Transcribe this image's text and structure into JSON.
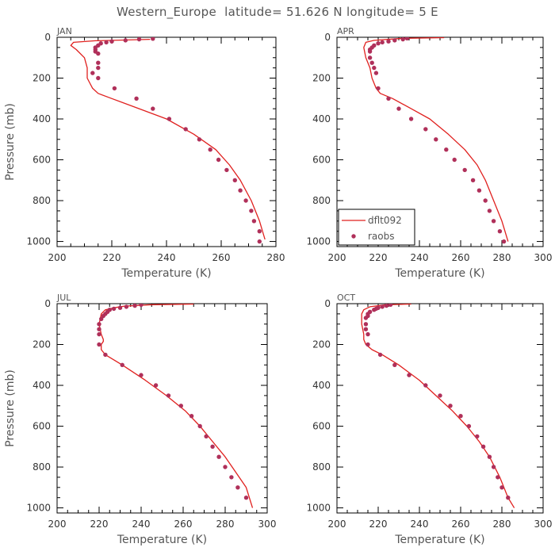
{
  "figure": {
    "title": "Western_Europe  latitude= 51.626 N longitude= 5 E"
  },
  "colors": {
    "model_line": "#e0201e",
    "obs_marker": "#b0305a",
    "axis": "#000000",
    "text": "#555555"
  },
  "chart_data": [
    {
      "type": "line",
      "panel": "JAN",
      "xlabel": "Temperature (K)",
      "ylabel": "Pressure (mb)",
      "xlim": [
        200,
        280
      ],
      "ylim": [
        1025,
        0
      ],
      "xticks": [
        200,
        220,
        240,
        260,
        280
      ],
      "yticks": [
        0,
        200,
        400,
        600,
        800,
        1000
      ],
      "grid": false,
      "legend": "none",
      "series": [
        {
          "name": "dflt092",
          "style": "line",
          "x": [
            234,
            214,
            206,
            205,
            207,
            210,
            211,
            211,
            212,
            213,
            215,
            220,
            230,
            240,
            250,
            258,
            263,
            267,
            271,
            274,
            276
          ],
          "y": [
            10,
            17,
            25,
            40,
            60,
            100,
            150,
            200,
            225,
            250,
            275,
            300,
            350,
            400,
            475,
            550,
            625,
            700,
            800,
            900,
            990
          ]
        },
        {
          "name": "raobs",
          "style": "scatter",
          "x": [
            235,
            230,
            225,
            220,
            218,
            216,
            215,
            214,
            214,
            214,
            215,
            215,
            215,
            213,
            215,
            221,
            229,
            235,
            241,
            247,
            252,
            256,
            259,
            262,
            265,
            267,
            269,
            271,
            272,
            274,
            274
          ],
          "y": [
            7,
            10,
            15,
            20,
            25,
            30,
            40,
            50,
            60,
            70,
            80,
            125,
            150,
            175,
            200,
            250,
            300,
            350,
            400,
            450,
            500,
            550,
            600,
            650,
            700,
            750,
            800,
            850,
            900,
            950,
            1000
          ]
        }
      ]
    },
    {
      "type": "line",
      "panel": "APR",
      "xlabel": "Temperature (K)",
      "ylabel": "",
      "xlim": [
        200,
        300
      ],
      "ylim": [
        1025,
        0
      ],
      "xticks": [
        200,
        220,
        240,
        260,
        280,
        300
      ],
      "yticks": [
        0,
        200,
        400,
        600,
        800,
        1000
      ],
      "grid": false,
      "legend": "lower-left",
      "series": [
        {
          "name": "dflt092",
          "style": "line",
          "x": [
            252,
            232,
            218,
            214,
            213,
            214,
            216,
            217,
            218,
            219,
            221,
            227,
            236,
            245,
            254,
            262,
            268,
            272,
            276,
            280,
            283
          ],
          "y": [
            2,
            5,
            15,
            25,
            50,
            100,
            150,
            200,
            225,
            250,
            275,
            300,
            350,
            400,
            475,
            550,
            625,
            700,
            800,
            900,
            1000
          ]
        },
        {
          "name": "raobs",
          "style": "scatter",
          "x": [
            234,
            232,
            228,
            225,
            222,
            220,
            218,
            217,
            216,
            216,
            216,
            217,
            218,
            219,
            220,
            225,
            230,
            236,
            243,
            248,
            253,
            257,
            262,
            266,
            269,
            272,
            274,
            276,
            279,
            281
          ],
          "y": [
            5,
            10,
            15,
            20,
            25,
            30,
            40,
            50,
            60,
            70,
            100,
            125,
            150,
            175,
            250,
            300,
            350,
            400,
            450,
            500,
            550,
            600,
            650,
            700,
            750,
            800,
            850,
            900,
            950,
            1000
          ]
        }
      ]
    },
    {
      "type": "line",
      "panel": "JUL",
      "xlabel": "Temperature (K)",
      "ylabel": "Pressure (mb)",
      "xlim": [
        200,
        300
      ],
      "ylim": [
        1025,
        0
      ],
      "xticks": [
        200,
        220,
        240,
        260,
        280,
        300
      ],
      "yticks": [
        0,
        200,
        400,
        600,
        800,
        1000
      ],
      "grid": false,
      "legend": "none",
      "series": [
        {
          "name": "dflt092",
          "style": "line",
          "x": [
            265,
            245,
            232,
            227,
            223,
            221,
            220,
            221,
            222,
            222,
            221,
            221,
            223,
            231,
            242,
            252,
            261,
            268,
            274,
            280,
            285,
            290,
            293
          ],
          "y": [
            2,
            5,
            12,
            20,
            30,
            50,
            100,
            150,
            175,
            185,
            200,
            225,
            250,
            300,
            375,
            450,
            525,
            600,
            675,
            750,
            825,
            900,
            1000
          ]
        },
        {
          "name": "raobs",
          "style": "scatter",
          "x": [
            240,
            237,
            233,
            230,
            227,
            225,
            224,
            223,
            222,
            221,
            220,
            220,
            220,
            220,
            223,
            231,
            240,
            247,
            253,
            259,
            264,
            268,
            271,
            274,
            277,
            280,
            283,
            286,
            290
          ],
          "y": [
            5,
            10,
            15,
            20,
            25,
            30,
            40,
            50,
            60,
            75,
            100,
            125,
            150,
            200,
            250,
            300,
            350,
            400,
            450,
            500,
            550,
            600,
            650,
            700,
            750,
            800,
            850,
            900,
            950
          ]
        }
      ]
    },
    {
      "type": "line",
      "panel": "OCT",
      "xlabel": "Temperature (K)",
      "ylabel": "",
      "xlim": [
        200,
        300
      ],
      "ylim": [
        1025,
        0
      ],
      "xticks": [
        200,
        220,
        240,
        260,
        280,
        300
      ],
      "yticks": [
        0,
        200,
        400,
        600,
        800,
        1000
      ],
      "grid": false,
      "legend": "none",
      "series": [
        {
          "name": "dflt092",
          "style": "line",
          "x": [
            236,
            224,
            216,
            213,
            212,
            212,
            213,
            213,
            214,
            217,
            222,
            230,
            240,
            248,
            256,
            263,
            269,
            274,
            279,
            283,
            286
          ],
          "y": [
            2,
            5,
            15,
            30,
            50,
            100,
            150,
            175,
            200,
            225,
            250,
            300,
            375,
            450,
            525,
            600,
            675,
            750,
            850,
            950,
            1000
          ]
        },
        {
          "name": "raobs",
          "style": "scatter",
          "x": [
            226,
            224,
            222,
            220,
            219,
            218,
            216,
            215,
            215,
            214,
            214,
            214,
            215,
            215,
            221,
            228,
            235,
            243,
            250,
            255,
            260,
            264,
            268,
            271,
            274,
            276,
            278,
            280,
            283
          ],
          "y": [
            5,
            10,
            15,
            20,
            25,
            30,
            40,
            50,
            60,
            70,
            100,
            125,
            150,
            200,
            250,
            300,
            350,
            400,
            450,
            500,
            550,
            600,
            650,
            700,
            750,
            800,
            850,
            900,
            950
          ]
        }
      ]
    }
  ]
}
